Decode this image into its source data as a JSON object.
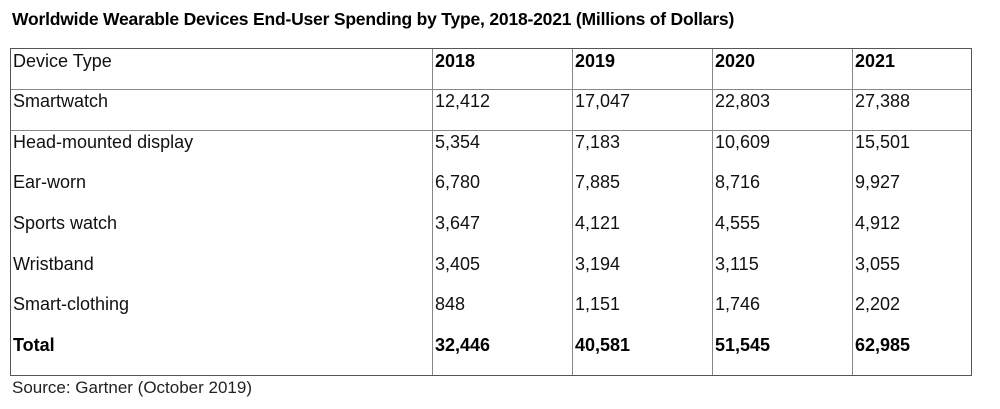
{
  "title": "Worldwide Wearable Devices End-User Spending by Type, 2018-2021 (Millions of Dollars)",
  "table": {
    "header": [
      "Device Type",
      "2018",
      "2019",
      "2020",
      "2021"
    ],
    "rows": [
      [
        "Smartwatch",
        "12,412",
        "17,047",
        "22,803",
        "27,388"
      ],
      [
        "Head-mounted display",
        "5,354",
        "7,183",
        "10,609",
        "15,501"
      ],
      [
        "Ear-worn",
        "6,780",
        "7,885",
        "8,716",
        "9,927"
      ],
      [
        "Sports watch",
        "3,647",
        "4,121",
        "4,555",
        "4,912"
      ],
      [
        "Wristband",
        "3,405",
        "3,194",
        "3,115",
        "3,055"
      ],
      [
        "Smart-clothing",
        "848",
        "1,151",
        "1,746",
        "2,202"
      ]
    ],
    "total": [
      "Total",
      "32,446",
      "40,581",
      "51,545",
      "62,985"
    ]
  },
  "source": "Source: Gartner (October 2019)"
}
